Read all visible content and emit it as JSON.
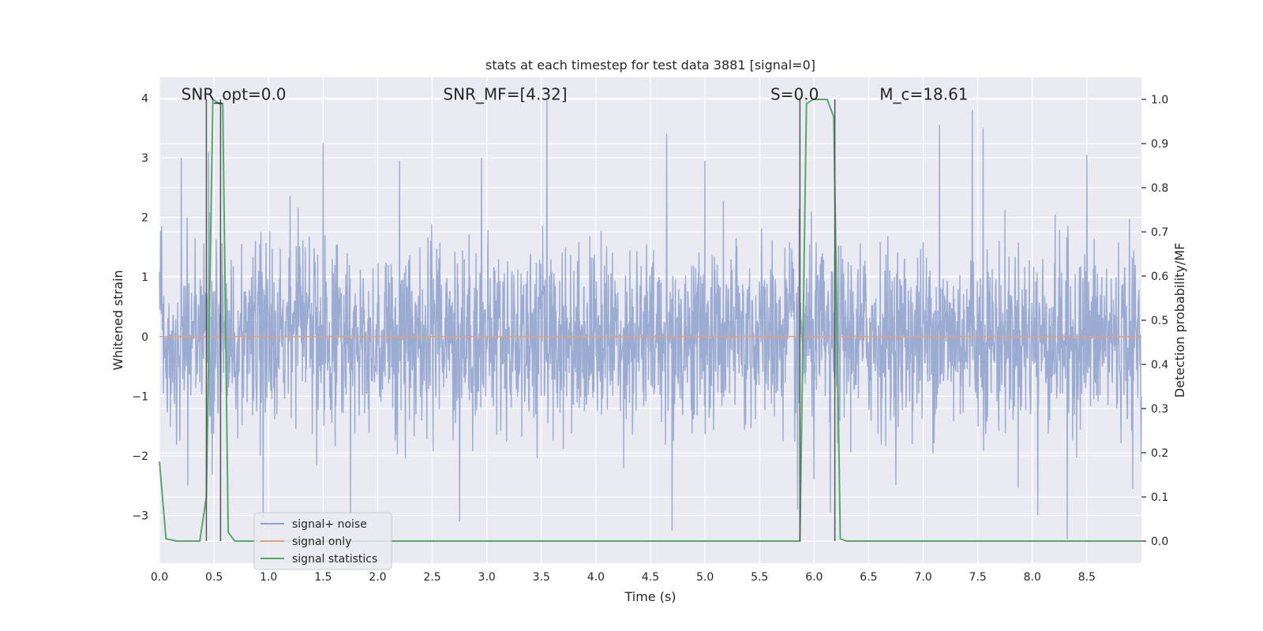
{
  "chart_data": {
    "type": "line",
    "title": "stats at each timestep for test data 3881 [signal=0]",
    "xlabel": "Time (s)",
    "ylabel": "Whitened strain",
    "y2label": "Detection probability/MF",
    "xlim": [
      0.0,
      9.0
    ],
    "ylim": [
      -3.8,
      4.35
    ],
    "y2lim": [
      -0.05,
      1.05
    ],
    "x_ticks": [
      0.0,
      0.5,
      1.0,
      1.5,
      2.0,
      2.5,
      3.0,
      3.5,
      4.0,
      4.5,
      5.0,
      5.5,
      6.0,
      6.5,
      7.0,
      7.5,
      8.0,
      8.5
    ],
    "x_tick_labels": [
      "0.0",
      "0.5",
      "1.0",
      "1.5",
      "2.0",
      "2.5",
      "3.0",
      "3.5",
      "4.0",
      "4.5",
      "5.0",
      "5.5",
      "6.0",
      "6.5",
      "7.0",
      "7.5",
      "8.0",
      "8.5"
    ],
    "y_ticks": [
      -3,
      -2,
      -1,
      0,
      1,
      2,
      3,
      4
    ],
    "y_tick_labels": [
      "−3",
      "−2",
      "−1",
      "0",
      "1",
      "2",
      "3",
      "4"
    ],
    "y2_ticks": [
      0.0,
      0.1,
      0.2,
      0.3,
      0.4,
      0.5,
      0.6,
      0.7,
      0.8,
      0.9,
      1.0
    ],
    "y2_tick_labels": [
      "0.0",
      "0.1",
      "0.2",
      "0.3",
      "0.4",
      "0.5",
      "0.6",
      "0.7",
      "0.8",
      "0.9",
      "1.0"
    ],
    "grid": true,
    "legend_position": "lower-left",
    "annotations": [
      {
        "text": "SNR_opt=0.0",
        "x": 0.2,
        "y": 4.0
      },
      {
        "text": "SNR_MF=[4.32]",
        "x": 2.6,
        "y": 4.0
      },
      {
        "text": "S=0.0",
        "x": 5.6,
        "y": 4.0
      },
      {
        "text": "M_c=18.61",
        "x": 6.6,
        "y": 4.0
      }
    ],
    "vertical_lines": [
      0.43,
      0.56,
      5.87,
      6.19
    ],
    "series": [
      {
        "name": "signal+ noise",
        "color": "#8da0cb",
        "axis": "left",
        "style": "noise",
        "rms": 0.75,
        "peaks": [
          {
            "x": 0.02,
            "y": 1.85
          },
          {
            "x": 0.2,
            "y": 3.0
          },
          {
            "x": 0.45,
            "y": 3.1
          },
          {
            "x": 0.95,
            "y": -3.05
          },
          {
            "x": 1.5,
            "y": 3.25
          },
          {
            "x": 1.75,
            "y": -3.0
          },
          {
            "x": 2.2,
            "y": 2.95
          },
          {
            "x": 2.75,
            "y": -3.1
          },
          {
            "x": 2.95,
            "y": 3.0
          },
          {
            "x": 3.55,
            "y": 4.0
          },
          {
            "x": 4.65,
            "y": 3.4
          },
          {
            "x": 4.7,
            "y": -3.25
          },
          {
            "x": 5.0,
            "y": 2.95
          },
          {
            "x": 5.85,
            "y": -2.9
          },
          {
            "x": 6.0,
            "y": -2.4
          },
          {
            "x": 6.15,
            "y": 3.3
          },
          {
            "x": 6.15,
            "y": -2.95
          },
          {
            "x": 7.15,
            "y": 3.55
          },
          {
            "x": 7.45,
            "y": 3.8
          },
          {
            "x": 7.55,
            "y": 3.5
          },
          {
            "x": 8.05,
            "y": -3.0
          },
          {
            "x": 8.32,
            "y": -3.4
          },
          {
            "x": 8.5,
            "y": 3.05
          },
          {
            "x": 8.92,
            "y": -2.55
          }
        ]
      },
      {
        "name": "signal only",
        "color": "#e5a07a",
        "axis": "left",
        "x": [
          0.0,
          9.0
        ],
        "y": [
          0.0,
          0.0
        ]
      },
      {
        "name": "signal statistics",
        "color": "#55a868",
        "axis": "right",
        "x": [
          0.0,
          0.06,
          0.16,
          0.37,
          0.43,
          0.49,
          0.55,
          0.58,
          0.63,
          0.69,
          5.87,
          5.93,
          5.99,
          6.12,
          6.18,
          6.24,
          6.3,
          9.0
        ],
        "y": [
          0.18,
          0.005,
          0.0,
          0.0,
          0.1,
          1.0,
          0.99,
          0.99,
          0.02,
          0.0,
          0.0,
          0.99,
          1.0,
          1.0,
          0.96,
          0.005,
          0.0,
          0.0
        ]
      }
    ]
  }
}
